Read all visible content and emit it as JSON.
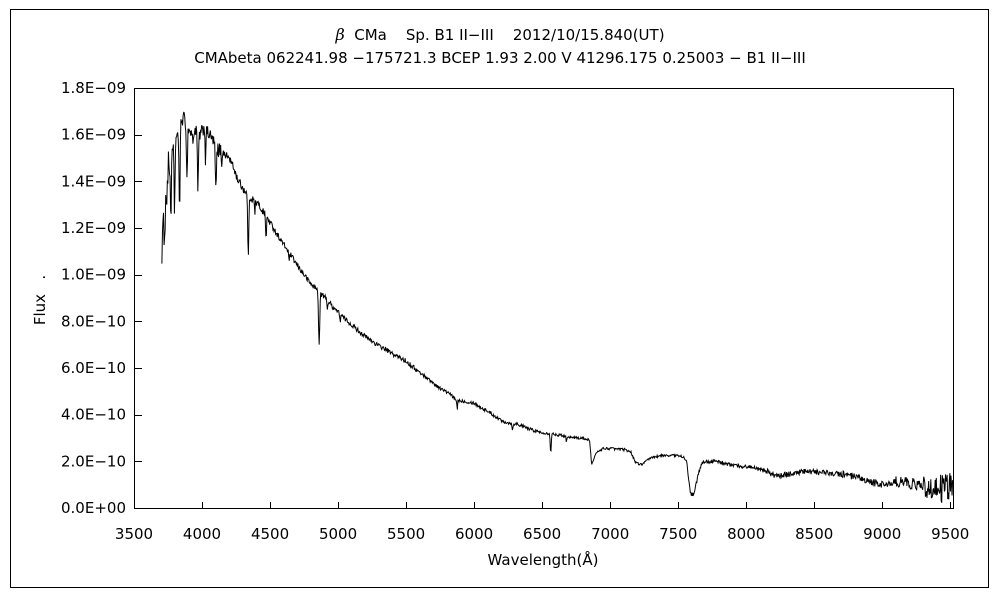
{
  "figure": {
    "title_beta": "β",
    "title_line1_rest": "  CMa    Sp. B1 II−III    2012/10/15.840(UT)",
    "title_line2": "CMAbeta 062241.98 −175721.3 BCEP 1.93 2.00 V 41296.175 0.25003 − B1 II−III",
    "xlabel": "Wavelength(Å)",
    "ylabel": "Flux   ."
  },
  "chart_data": {
    "type": "line",
    "title": "β CMa  Sp. B1 II−III  2012/10/15.840(UT)",
    "subtitle": "CMAbeta 062241.98 −175721.3 BCEP 1.93 2.00 V 41296.175 0.25003 − B1 II−III",
    "xlabel": "Wavelength(Å)",
    "ylabel": "Flux",
    "grid": false,
    "legend": false,
    "line_color": "#000000",
    "background": "#ffffff",
    "xlim": [
      3500,
      9520
    ],
    "ylim_e10": [
      0,
      18
    ],
    "x_ticks": [
      3500,
      4000,
      4500,
      5000,
      5500,
      6000,
      6500,
      7000,
      7500,
      8000,
      8500,
      9000,
      9500
    ],
    "y_ticks": [
      {
        "label": "1.8E−09",
        "value_e10": 18
      },
      {
        "label": "1.6E−09",
        "value_e10": 16
      },
      {
        "label": "1.4E−09",
        "value_e10": 14
      },
      {
        "label": "1.2E−09",
        "value_e10": 12
      },
      {
        "label": "1.0E−09",
        "value_e10": 10
      },
      {
        "label": "8.0E−10",
        "value_e10": 8
      },
      {
        "label": "6.0E−10",
        "value_e10": 6
      },
      {
        "label": "4.0E−10",
        "value_e10": 4
      },
      {
        "label": "2.0E−10",
        "value_e10": 2
      },
      {
        "label": "0.0E+00",
        "value_e10": 0
      }
    ],
    "series": {
      "name": "beta-CMa-spectrum",
      "lambda_start": 3705,
      "lambda_end": 9520,
      "sample_step": 4,
      "noise_seed": 1234,
      "continuum_e10": [
        [
          3705,
          11.2
        ],
        [
          3712,
          11.6
        ],
        [
          3720,
          12.0
        ],
        [
          3728,
          12.4
        ],
        [
          3736,
          13.2
        ],
        [
          3744,
          13.9
        ],
        [
          3752,
          14.4
        ],
        [
          3762,
          14.8
        ],
        [
          3775,
          15.1
        ],
        [
          3790,
          15.45
        ],
        [
          3806,
          15.9
        ],
        [
          3820,
          15.8
        ],
        [
          3836,
          16.3
        ],
        [
          3850,
          16.55
        ],
        [
          3862,
          16.75
        ],
        [
          3876,
          16.6
        ],
        [
          3890,
          16.4
        ],
        [
          3905,
          16.2
        ],
        [
          3920,
          16.05
        ],
        [
          3936,
          16.15
        ],
        [
          3952,
          16.2
        ],
        [
          3968,
          16.0
        ],
        [
          3984,
          15.95
        ],
        [
          4000,
          16.15
        ],
        [
          4016,
          16.3
        ],
        [
          4032,
          16.15
        ],
        [
          4048,
          16.05
        ],
        [
          4064,
          15.9
        ],
        [
          4080,
          15.75
        ],
        [
          4100,
          15.6
        ],
        [
          4120,
          15.45
        ],
        [
          4140,
          15.3
        ],
        [
          4160,
          15.2
        ],
        [
          4180,
          15.1
        ],
        [
          4200,
          15.0
        ],
        [
          4220,
          14.75
        ],
        [
          4240,
          14.45
        ],
        [
          4260,
          14.1
        ],
        [
          4280,
          13.9
        ],
        [
          4300,
          13.7
        ],
        [
          4350,
          13.35
        ],
        [
          4400,
          13.1
        ],
        [
          4450,
          12.7
        ],
        [
          4500,
          12.25
        ],
        [
          4550,
          11.75
        ],
        [
          4600,
          11.3
        ],
        [
          4650,
          10.85
        ],
        [
          4700,
          10.4
        ],
        [
          4750,
          10.0
        ],
        [
          4800,
          9.6
        ],
        [
          4830,
          9.45
        ],
        [
          4860,
          9.25
        ],
        [
          4900,
          9.05
        ],
        [
          4950,
          8.7
        ],
        [
          5000,
          8.4
        ],
        [
          5050,
          8.1
        ],
        [
          5100,
          7.85
        ],
        [
          5150,
          7.6
        ],
        [
          5200,
          7.35
        ],
        [
          5250,
          7.15
        ],
        [
          5300,
          6.95
        ],
        [
          5350,
          6.8
        ],
        [
          5400,
          6.6
        ],
        [
          5450,
          6.45
        ],
        [
          5500,
          6.3
        ],
        [
          5550,
          6.05
        ],
        [
          5600,
          5.8
        ],
        [
          5650,
          5.6
        ],
        [
          5700,
          5.35
        ],
        [
          5745,
          5.15
        ],
        [
          5790,
          5.0
        ],
        [
          5830,
          4.85
        ],
        [
          5860,
          4.65
        ],
        [
          5900,
          4.6
        ],
        [
          5950,
          4.55
        ],
        [
          6000,
          4.5
        ],
        [
          6050,
          4.3
        ],
        [
          6100,
          4.15
        ],
        [
          6150,
          3.95
        ],
        [
          6200,
          3.75
        ],
        [
          6250,
          3.65
        ],
        [
          6320,
          3.6
        ],
        [
          6400,
          3.4
        ],
        [
          6480,
          3.25
        ],
        [
          6540,
          3.2
        ],
        [
          6600,
          3.15
        ],
        [
          6660,
          3.1
        ],
        [
          6720,
          3.02
        ],
        [
          6780,
          3.0
        ],
        [
          6830,
          2.95
        ],
        [
          6848,
          2.88
        ],
        [
          6856,
          2.5
        ],
        [
          6864,
          1.85
        ],
        [
          6872,
          1.95
        ],
        [
          6885,
          2.2
        ],
        [
          6900,
          2.35
        ],
        [
          6925,
          2.48
        ],
        [
          6950,
          2.55
        ],
        [
          7000,
          2.55
        ],
        [
          7060,
          2.52
        ],
        [
          7110,
          2.5
        ],
        [
          7150,
          2.42
        ],
        [
          7168,
          2.2
        ],
        [
          7190,
          1.92
        ],
        [
          7230,
          1.87
        ],
        [
          7265,
          2.0
        ],
        [
          7300,
          2.15
        ],
        [
          7350,
          2.22
        ],
        [
          7420,
          2.26
        ],
        [
          7480,
          2.25
        ],
        [
          7540,
          2.2
        ],
        [
          7562,
          2.0
        ],
        [
          7578,
          1.1
        ],
        [
          7592,
          0.62
        ],
        [
          7608,
          0.55
        ],
        [
          7622,
          0.78
        ],
        [
          7645,
          1.35
        ],
        [
          7668,
          1.85
        ],
        [
          7692,
          2.0
        ],
        [
          7730,
          2.0
        ],
        [
          7800,
          1.98
        ],
        [
          7880,
          1.85
        ],
        [
          7950,
          1.8
        ],
        [
          8020,
          1.76
        ],
        [
          8090,
          1.72
        ],
        [
          8140,
          1.62
        ],
        [
          8185,
          1.45
        ],
        [
          8235,
          1.35
        ],
        [
          8285,
          1.42
        ],
        [
          8350,
          1.5
        ],
        [
          8420,
          1.55
        ],
        [
          8500,
          1.55
        ],
        [
          8600,
          1.5
        ],
        [
          8700,
          1.45
        ],
        [
          8780,
          1.35
        ],
        [
          8850,
          1.2
        ],
        [
          8920,
          1.1
        ],
        [
          9000,
          1.0
        ],
        [
          9060,
          1.05
        ],
        [
          9120,
          1.12
        ],
        [
          9180,
          1.1
        ],
        [
          9240,
          1.0
        ],
        [
          9300,
          0.92
        ],
        [
          9360,
          0.86
        ],
        [
          9420,
          0.8
        ],
        [
          9470,
          0.85
        ],
        [
          9520,
          1.0
        ]
      ],
      "absorption_lines": [
        {
          "center": 3771,
          "width": 5,
          "depth_e10": 2.6
        },
        {
          "center": 3798,
          "width": 5,
          "depth_e10": 3.0
        },
        {
          "center": 3835,
          "width": 5,
          "depth_e10": 3.6
        },
        {
          "center": 3889,
          "width": 5,
          "depth_e10": 2.4
        },
        {
          "center": 3934,
          "width": 3,
          "depth_e10": 0.8
        },
        {
          "center": 3970,
          "width": 5,
          "depth_e10": 2.5
        },
        {
          "center": 4026,
          "width": 4,
          "depth_e10": 1.4
        },
        {
          "center": 4102,
          "width": 6,
          "depth_e10": 2.0
        },
        {
          "center": 4121,
          "width": 3,
          "depth_e10": 0.5
        },
        {
          "center": 4144,
          "width": 3,
          "depth_e10": 0.6
        },
        {
          "center": 4340,
          "width": 6,
          "depth_e10": 2.5
        },
        {
          "center": 4388,
          "width": 3,
          "depth_e10": 0.7
        },
        {
          "center": 4471,
          "width": 4,
          "depth_e10": 1.1
        },
        {
          "center": 4640,
          "width": 3,
          "depth_e10": 0.5
        },
        {
          "center": 4861,
          "width": 6,
          "depth_e10": 2.3
        },
        {
          "center": 4922,
          "width": 3,
          "depth_e10": 0.45
        },
        {
          "center": 5016,
          "width": 3,
          "depth_e10": 0.35
        },
        {
          "center": 5876,
          "width": 3,
          "depth_e10": 0.5
        },
        {
          "center": 6283,
          "width": 5,
          "depth_e10": 0.28
        },
        {
          "center": 6563,
          "width": 5,
          "depth_e10": 0.8
        },
        {
          "center": 6678,
          "width": 3,
          "depth_e10": 0.3
        }
      ],
      "noise_segments_e10": [
        [
          3705,
          3762,
          0.85
        ],
        [
          3762,
          4150,
          0.28
        ],
        [
          4150,
          4500,
          0.17
        ],
        [
          4500,
          5000,
          0.12
        ],
        [
          5000,
          5600,
          0.1
        ],
        [
          5600,
          6500,
          0.07
        ],
        [
          6500,
          7560,
          0.055
        ],
        [
          7560,
          7700,
          0.08
        ],
        [
          7700,
          8150,
          0.08
        ],
        [
          8150,
          8700,
          0.12
        ],
        [
          8700,
          9100,
          0.16
        ],
        [
          9100,
          9300,
          0.26
        ],
        [
          9300,
          9420,
          0.48
        ],
        [
          9420,
          9520,
          0.62
        ]
      ]
    }
  }
}
